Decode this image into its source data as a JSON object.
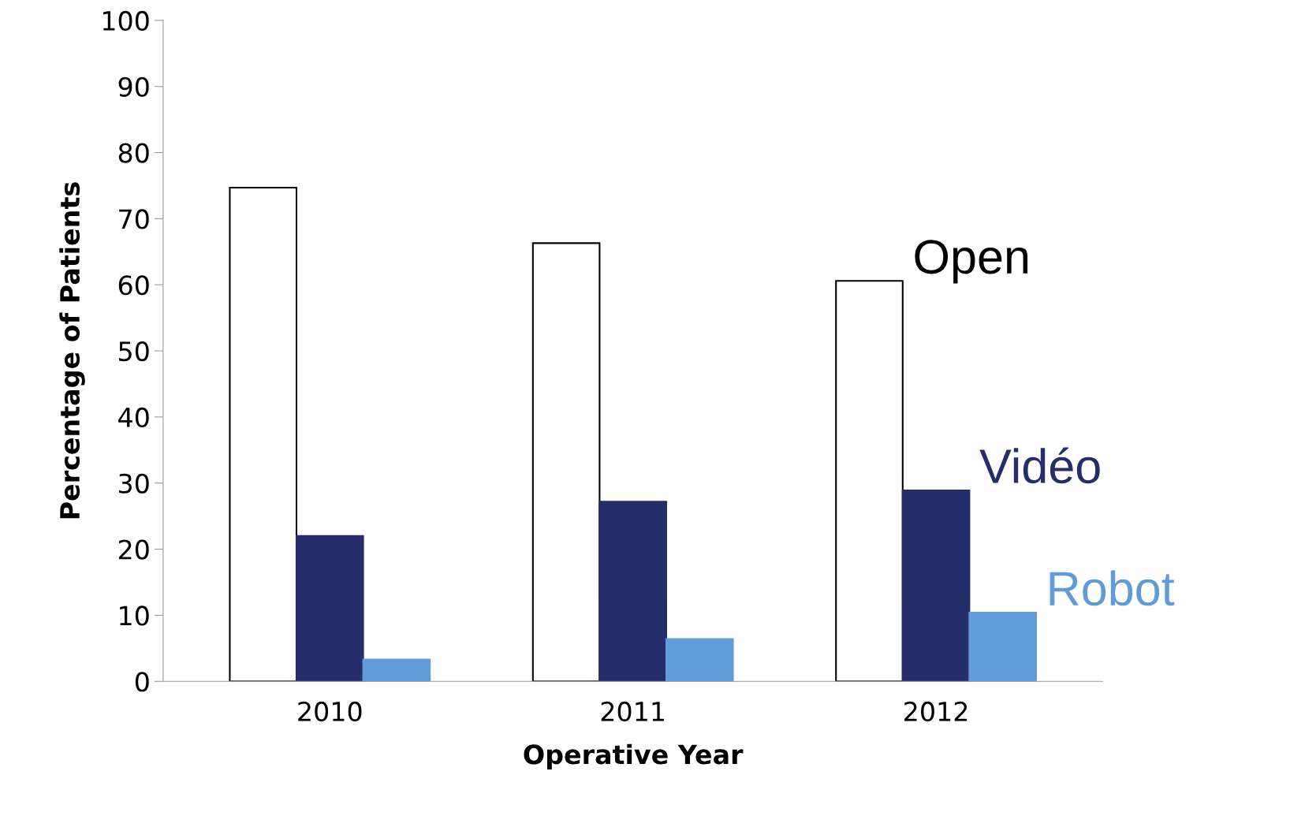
{
  "chart_data": {
    "type": "bar",
    "xlabel": "Operative Year",
    "ylabel": "Percentage of Patients",
    "categories": [
      "2010",
      "2011",
      "2012"
    ],
    "series": [
      {
        "name": "Open",
        "color": "#ffffff",
        "values": [
          74.7,
          66.3,
          60.6
        ]
      },
      {
        "name": "Vidéo",
        "color": "#262d6b",
        "values": [
          22.0,
          27.2,
          28.9
        ]
      },
      {
        "name": "Robot",
        "color": "#5f9bd8",
        "values": [
          3.3,
          6.4,
          10.4
        ]
      }
    ],
    "ylim": [
      0,
      100
    ],
    "yticks": [
      0,
      10,
      20,
      30,
      40,
      50,
      60,
      70,
      80,
      90,
      100
    ],
    "grid": false,
    "legend": false
  }
}
